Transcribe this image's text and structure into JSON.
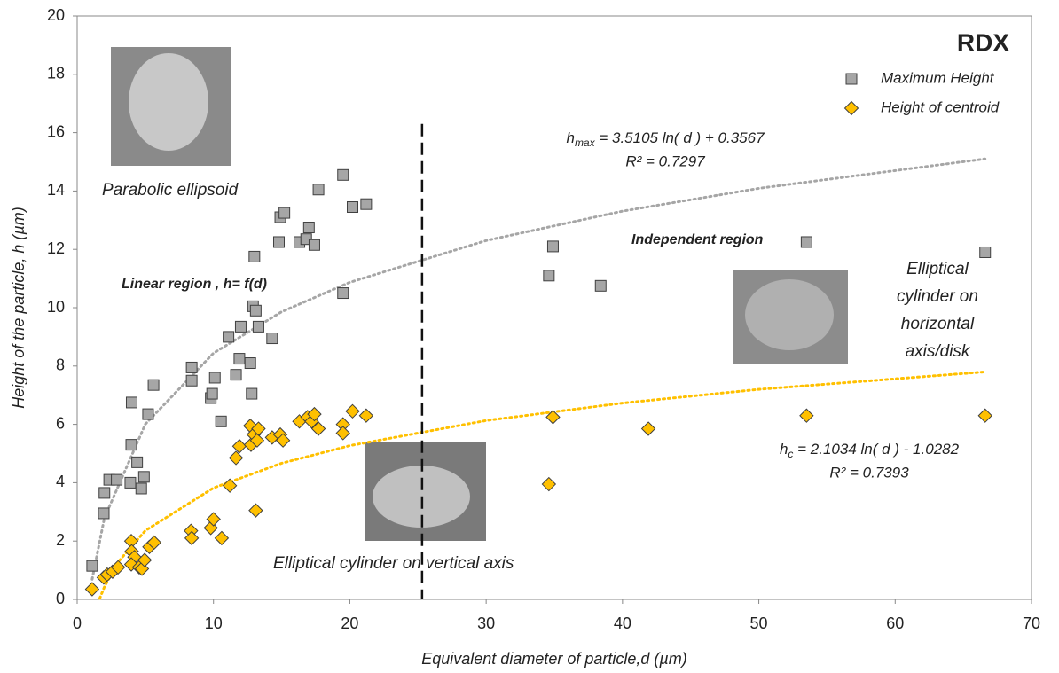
{
  "chart_data": {
    "type": "scatter",
    "title": "RDX",
    "x_label": "Equivalent diameter of particle,d (µm)",
    "y_label": "Height of the particle, h (µm)",
    "xlim": [
      0,
      70
    ],
    "xticks": [
      0,
      10,
      20,
      30,
      40,
      50,
      60,
      70
    ],
    "ylim": [
      0,
      20
    ],
    "yticks": [
      0,
      2,
      4,
      6,
      8,
      10,
      12,
      14,
      16,
      18,
      20
    ],
    "grid": false,
    "legend": "top-right",
    "series": [
      {
        "name": "Maximum Height",
        "color": "#a6a6a6",
        "marker": "square",
        "x": [
          1.1,
          1.95,
          2.0,
          2.35,
          2.9,
          3.9,
          3.97,
          4.0,
          4.4,
          4.7,
          4.9,
          5.2,
          5.6,
          8.4,
          8.4,
          9.8,
          9.9,
          10.1,
          10.55,
          11.1,
          11.65,
          11.9,
          12.0,
          12.7,
          12.8,
          12.9,
          13.0,
          13.1,
          13.3,
          14.3,
          14.8,
          14.9,
          15.2,
          16.3,
          16.8,
          17.0,
          17.4,
          17.7,
          19.5,
          19.5,
          20.2,
          21.2,
          34.6,
          34.9,
          38.4,
          53.5,
          66.6
        ],
        "values": [
          1.15,
          2.95,
          3.65,
          4.1,
          4.1,
          4.0,
          5.3,
          6.75,
          4.7,
          3.8,
          4.2,
          6.35,
          7.35,
          7.95,
          7.5,
          6.9,
          7.05,
          7.6,
          6.1,
          9.0,
          7.7,
          8.25,
          9.35,
          8.1,
          7.05,
          10.05,
          11.75,
          9.9,
          9.35,
          8.95,
          12.25,
          13.1,
          13.25,
          12.25,
          12.35,
          12.75,
          12.15,
          14.05,
          14.55,
          10.5,
          13.45,
          13.55,
          11.1,
          12.1,
          10.75,
          12.25,
          11.9
        ]
      },
      {
        "name": "Height of centroid",
        "color": "#ffc000",
        "marker": "diamond",
        "x": [
          1.1,
          1.95,
          2.2,
          2.6,
          3.0,
          3.97,
          4.0,
          4.2,
          3.97,
          4.55,
          4.75,
          4.95,
          5.3,
          5.65,
          8.35,
          8.4,
          9.8,
          10.0,
          10.6,
          11.2,
          11.65,
          11.9,
          12.7,
          12.75,
          12.95,
          13.1,
          13.2,
          13.3,
          14.3,
          14.9,
          15.1,
          16.3,
          16.9,
          17.2,
          17.4,
          17.7,
          19.5,
          19.5,
          20.2,
          21.2,
          34.6,
          34.9,
          41.9,
          53.5,
          66.6
        ],
        "values": [
          0.35,
          0.75,
          0.85,
          0.95,
          1.1,
          2.0,
          1.65,
          1.45,
          1.2,
          1.1,
          1.05,
          1.35,
          1.8,
          1.95,
          2.35,
          2.1,
          2.45,
          2.75,
          2.1,
          3.9,
          4.85,
          5.25,
          5.95,
          5.3,
          5.65,
          3.05,
          5.45,
          5.85,
          5.55,
          5.65,
          5.45,
          6.1,
          6.25,
          6.1,
          6.35,
          5.85,
          6.0,
          5.7,
          6.45,
          6.3,
          3.95,
          6.25,
          5.85,
          6.3,
          6.3
        ]
      }
    ],
    "trendlines": [
      {
        "color": "#a6a6a6",
        "x": [
          1.1,
          2,
          5,
          10,
          15,
          20,
          30,
          40,
          50,
          66.6
        ],
        "values": [
          0.69,
          2.79,
          6.01,
          8.44,
          9.86,
          10.87,
          12.3,
          13.31,
          14.09,
          15.1
        ]
      },
      {
        "color": "#ffc000",
        "x": [
          1.65,
          2,
          3,
          5,
          10,
          15,
          20,
          30,
          40,
          50,
          66.6
        ],
        "values": [
          0.03,
          0.43,
          1.28,
          2.36,
          3.82,
          4.67,
          5.27,
          6.13,
          6.73,
          7.2,
          7.8
        ]
      }
    ],
    "divider_x": 25.3,
    "annotations": {
      "photo_top": "Parabolic ellipsoid",
      "linear": "Linear region , h= f(d)",
      "independent": "Independent region",
      "photo_bottom": "Elliptical cylinder on vertical axis",
      "photo_right": [
        "Elliptical",
        "cylinder on",
        "horizontal",
        "axis/disk"
      ],
      "eq_max": {
        "symbol": "h",
        "sub": "max",
        "rest": " = 3.5105 ln( d ) + 0.3567",
        "r2": "R² = 0.7297"
      },
      "eq_c": {
        "symbol": "h",
        "sub": "c",
        "rest": " = 2.1034 ln( d ) - 1.0282",
        "r2": "R² = 0.7393"
      }
    }
  }
}
